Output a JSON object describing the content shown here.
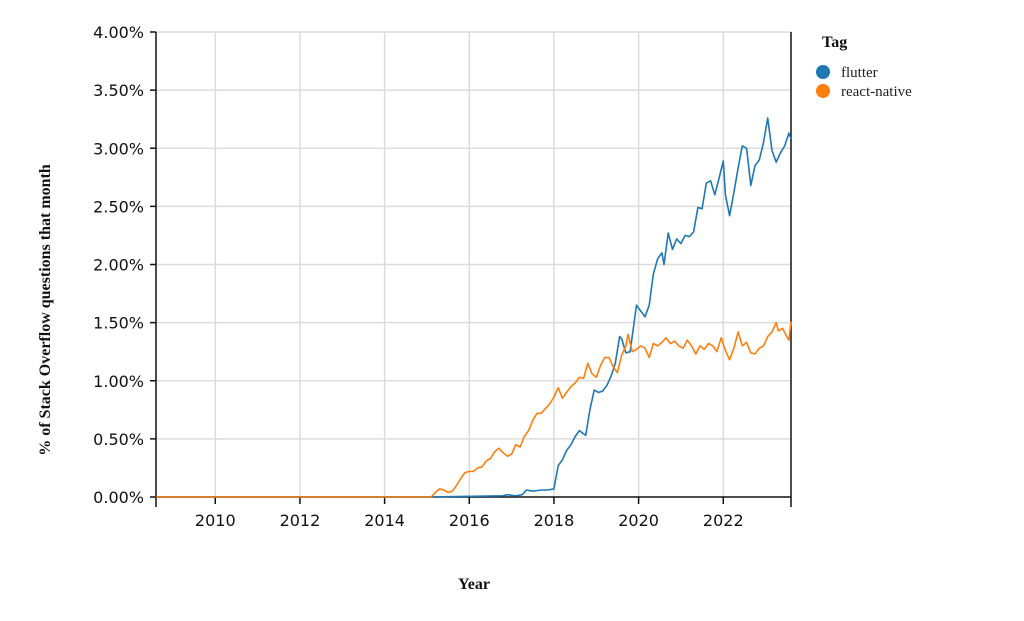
{
  "chart_data": {
    "type": "line",
    "title": "",
    "xlabel": "Year",
    "ylabel": "% of Stack Overflow questions that month",
    "xlim": [
      2008.6,
      2023.6
    ],
    "ylim": [
      0,
      0.04
    ],
    "x_ticks": [
      2010,
      2012,
      2014,
      2016,
      2018,
      2020,
      2022
    ],
    "x_tick_labels": [
      "2010",
      "2012",
      "2014",
      "2016",
      "2018",
      "2020",
      "2022"
    ],
    "y_ticks": [
      0,
      0.005,
      0.01,
      0.015,
      0.02,
      0.025,
      0.03,
      0.035,
      0.04
    ],
    "y_tick_labels": [
      "0.00%",
      "0.50%",
      "1.00%",
      "1.50%",
      "2.00%",
      "2.50%",
      "3.00%",
      "3.50%",
      "4.00%"
    ],
    "grid": true,
    "legend": {
      "title": "Tag",
      "position": "right"
    },
    "series": [
      {
        "name": "flutter",
        "color": "#1f77b4",
        "points": [
          [
            2008.6,
            0
          ],
          [
            2015.0,
            0
          ],
          [
            2016.8,
            0.0001
          ],
          [
            2016.9,
            0.0002
          ],
          [
            2017.1,
            0.0001
          ],
          [
            2017.25,
            0.0002
          ],
          [
            2017.35,
            0.0006
          ],
          [
            2017.5,
            0.0005
          ],
          [
            2017.7,
            0.0006
          ],
          [
            2017.85,
            0.0006
          ],
          [
            2018.0,
            0.0007
          ],
          [
            2018.1,
            0.0027
          ],
          [
            2018.2,
            0.0032
          ],
          [
            2018.3,
            0.004
          ],
          [
            2018.4,
            0.0045
          ],
          [
            2018.5,
            0.0052
          ],
          [
            2018.6,
            0.0057
          ],
          [
            2018.75,
            0.0053
          ],
          [
            2018.85,
            0.0075
          ],
          [
            2018.95,
            0.0092
          ],
          [
            2019.05,
            0.009
          ],
          [
            2019.15,
            0.0091
          ],
          [
            2019.25,
            0.0096
          ],
          [
            2019.35,
            0.0104
          ],
          [
            2019.45,
            0.0115
          ],
          [
            2019.55,
            0.0138
          ],
          [
            2019.6,
            0.0136
          ],
          [
            2019.7,
            0.0124
          ],
          [
            2019.8,
            0.0125
          ],
          [
            2019.95,
            0.0165
          ],
          [
            2020.05,
            0.016
          ],
          [
            2020.15,
            0.0155
          ],
          [
            2020.25,
            0.0165
          ],
          [
            2020.35,
            0.0192
          ],
          [
            2020.45,
            0.0205
          ],
          [
            2020.55,
            0.021
          ],
          [
            2020.6,
            0.02
          ],
          [
            2020.7,
            0.0227
          ],
          [
            2020.8,
            0.0213
          ],
          [
            2020.9,
            0.0222
          ],
          [
            2021.0,
            0.0218
          ],
          [
            2021.1,
            0.0225
          ],
          [
            2021.2,
            0.0224
          ],
          [
            2021.3,
            0.0228
          ],
          [
            2021.4,
            0.0249
          ],
          [
            2021.5,
            0.0248
          ],
          [
            2021.6,
            0.027
          ],
          [
            2021.7,
            0.0272
          ],
          [
            2021.8,
            0.026
          ],
          [
            2021.9,
            0.0274
          ],
          [
            2022.0,
            0.0289
          ],
          [
            2022.05,
            0.026
          ],
          [
            2022.15,
            0.0242
          ],
          [
            2022.25,
            0.0262
          ],
          [
            2022.35,
            0.0283
          ],
          [
            2022.45,
            0.0302
          ],
          [
            2022.55,
            0.03
          ],
          [
            2022.65,
            0.0268
          ],
          [
            2022.75,
            0.0285
          ],
          [
            2022.85,
            0.029
          ],
          [
            2022.95,
            0.0305
          ],
          [
            2023.05,
            0.0326
          ],
          [
            2023.15,
            0.0298
          ],
          [
            2023.25,
            0.0288
          ],
          [
            2023.35,
            0.0296
          ],
          [
            2023.45,
            0.0302
          ],
          [
            2023.55,
            0.0313
          ],
          [
            2023.6,
            0.0308
          ]
        ]
      },
      {
        "name": "react-native",
        "color": "#ff7f0e",
        "points": [
          [
            2008.6,
            0
          ],
          [
            2015.1,
            0
          ],
          [
            2015.2,
            0.0004
          ],
          [
            2015.3,
            0.0007
          ],
          [
            2015.4,
            0.0006
          ],
          [
            2015.5,
            0.0004
          ],
          [
            2015.6,
            0.0005
          ],
          [
            2015.7,
            0.001
          ],
          [
            2015.8,
            0.0016
          ],
          [
            2015.9,
            0.0021
          ],
          [
            2016.0,
            0.0022
          ],
          [
            2016.1,
            0.0022
          ],
          [
            2016.2,
            0.0025
          ],
          [
            2016.3,
            0.0026
          ],
          [
            2016.4,
            0.0031
          ],
          [
            2016.5,
            0.0033
          ],
          [
            2016.6,
            0.0039
          ],
          [
            2016.7,
            0.0042
          ],
          [
            2016.8,
            0.0038
          ],
          [
            2016.9,
            0.0035
          ],
          [
            2017.0,
            0.0037
          ],
          [
            2017.1,
            0.0045
          ],
          [
            2017.2,
            0.0043
          ],
          [
            2017.3,
            0.0052
          ],
          [
            2017.4,
            0.0057
          ],
          [
            2017.5,
            0.0066
          ],
          [
            2017.6,
            0.0072
          ],
          [
            2017.7,
            0.0072
          ],
          [
            2017.8,
            0.0076
          ],
          [
            2017.9,
            0.008
          ],
          [
            2018.0,
            0.0086
          ],
          [
            2018.1,
            0.0094
          ],
          [
            2018.2,
            0.0085
          ],
          [
            2018.3,
            0.009
          ],
          [
            2018.4,
            0.0095
          ],
          [
            2018.5,
            0.0098
          ],
          [
            2018.6,
            0.0103
          ],
          [
            2018.7,
            0.0102
          ],
          [
            2018.8,
            0.0115
          ],
          [
            2018.9,
            0.0106
          ],
          [
            2019.0,
            0.0103
          ],
          [
            2019.1,
            0.0113
          ],
          [
            2019.2,
            0.012
          ],
          [
            2019.3,
            0.012
          ],
          [
            2019.4,
            0.0112
          ],
          [
            2019.5,
            0.0107
          ],
          [
            2019.6,
            0.0122
          ],
          [
            2019.7,
            0.013
          ],
          [
            2019.75,
            0.014
          ],
          [
            2019.85,
            0.0125
          ],
          [
            2019.95,
            0.0127
          ],
          [
            2020.05,
            0.013
          ],
          [
            2020.15,
            0.0128
          ],
          [
            2020.25,
            0.012
          ],
          [
            2020.35,
            0.0132
          ],
          [
            2020.45,
            0.013
          ],
          [
            2020.55,
            0.0133
          ],
          [
            2020.65,
            0.0137
          ],
          [
            2020.75,
            0.0132
          ],
          [
            2020.85,
            0.0134
          ],
          [
            2020.95,
            0.013
          ],
          [
            2021.05,
            0.0128
          ],
          [
            2021.15,
            0.0135
          ],
          [
            2021.25,
            0.013
          ],
          [
            2021.35,
            0.0123
          ],
          [
            2021.45,
            0.013
          ],
          [
            2021.55,
            0.0127
          ],
          [
            2021.65,
            0.0132
          ],
          [
            2021.75,
            0.013
          ],
          [
            2021.85,
            0.0125
          ],
          [
            2021.95,
            0.0137
          ],
          [
            2022.05,
            0.0126
          ],
          [
            2022.15,
            0.0118
          ],
          [
            2022.25,
            0.0128
          ],
          [
            2022.35,
            0.0142
          ],
          [
            2022.45,
            0.013
          ],
          [
            2022.55,
            0.0133
          ],
          [
            2022.65,
            0.0124
          ],
          [
            2022.75,
            0.0123
          ],
          [
            2022.85,
            0.0128
          ],
          [
            2022.95,
            0.013
          ],
          [
            2023.05,
            0.0138
          ],
          [
            2023.15,
            0.0142
          ],
          [
            2023.25,
            0.015
          ],
          [
            2023.3,
            0.0143
          ],
          [
            2023.4,
            0.0145
          ],
          [
            2023.5,
            0.0138
          ],
          [
            2023.55,
            0.0135
          ],
          [
            2023.6,
            0.0151
          ]
        ]
      }
    ]
  }
}
